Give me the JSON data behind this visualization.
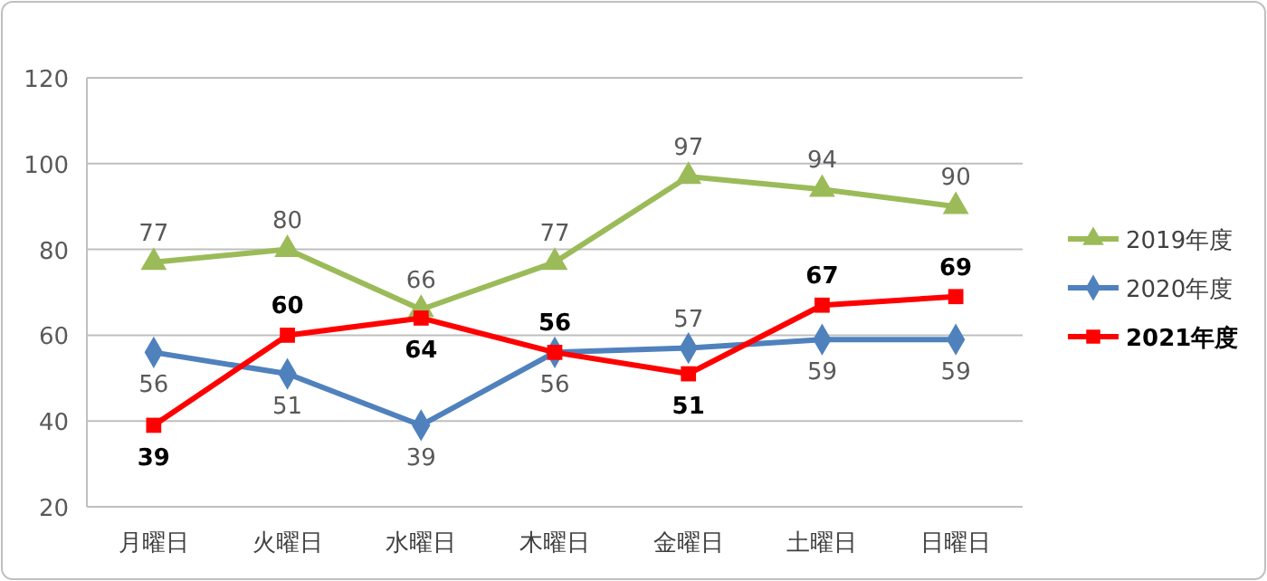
{
  "chart_data": {
    "type": "line",
    "categories": [
      "月曜日",
      "火曜日",
      "水曜日",
      "木曜日",
      "金曜日",
      "土曜日",
      "日曜日"
    ],
    "series": [
      {
        "name": "2019年度",
        "color": "#9bbb59",
        "marker": "triangle",
        "values": [
          77,
          80,
          66,
          77,
          97,
          94,
          90
        ]
      },
      {
        "name": "2020年度",
        "color": "#4f81bd",
        "marker": "diamond",
        "values": [
          56,
          51,
          39,
          56,
          57,
          59,
          59
        ]
      },
      {
        "name": "2021年度",
        "color": "#ff0000",
        "marker": "square",
        "values": [
          39,
          60,
          64,
          56,
          51,
          67,
          69
        ]
      }
    ],
    "ylim": [
      20,
      120
    ],
    "yticks": [
      20,
      40,
      60,
      80,
      100,
      120
    ],
    "grid": "y",
    "legend": "right",
    "data_labels": true
  }
}
